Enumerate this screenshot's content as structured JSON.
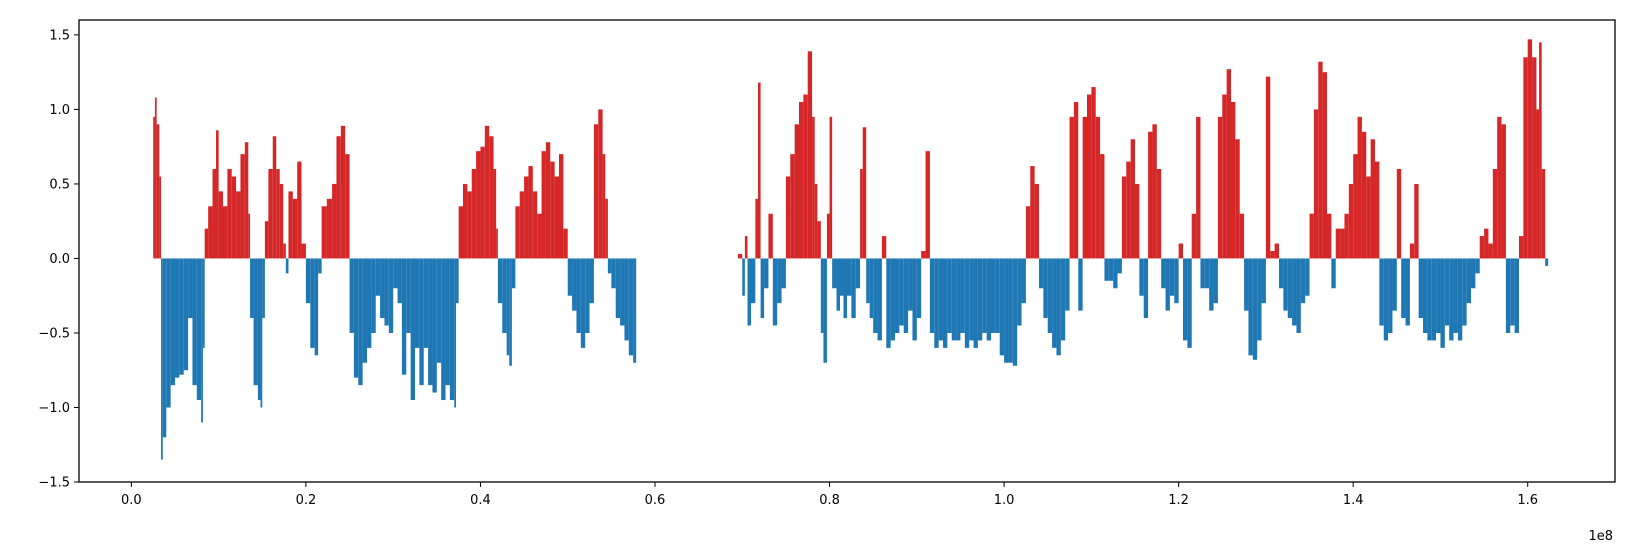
{
  "chart_data": {
    "type": "bar",
    "title": "",
    "xlabel": "",
    "ylabel": "",
    "x_offset_label": "1e8",
    "xlim": [
      -0.06,
      1.7
    ],
    "ylim": [
      -1.5,
      1.6
    ],
    "grid": false,
    "x_ticks": [
      {
        "value": 0.0,
        "label": "0.0"
      },
      {
        "value": 0.2,
        "label": "0.2"
      },
      {
        "value": 0.4,
        "label": "0.4"
      },
      {
        "value": 0.6,
        "label": "0.6"
      },
      {
        "value": 0.8,
        "label": "0.8"
      },
      {
        "value": 1.0,
        "label": "1.0"
      },
      {
        "value": 1.2,
        "label": "1.2"
      },
      {
        "value": 1.4,
        "label": "1.4"
      },
      {
        "value": 1.6,
        "label": "1.6"
      }
    ],
    "y_ticks": [
      {
        "value": 1.5,
        "label": "1.5"
      },
      {
        "value": 1.0,
        "label": "1.0"
      },
      {
        "value": 0.5,
        "label": "0.5"
      },
      {
        "value": 0.0,
        "label": "0.0"
      },
      {
        "value": -0.5,
        "label": "−0.5"
      },
      {
        "value": -1.0,
        "label": "−1.0"
      },
      {
        "value": -1.5,
        "label": "−1.5"
      }
    ],
    "colors": {
      "positive": "#d62728",
      "negative": "#1f77b4"
    },
    "profile": [
      [
        0.025,
        0.95
      ],
      [
        0.027,
        1.08
      ],
      [
        0.029,
        0.9
      ],
      [
        0.032,
        0.55
      ],
      [
        0.034,
        -1.35
      ],
      [
        0.036,
        -1.2
      ],
      [
        0.04,
        -1.0
      ],
      [
        0.045,
        -0.85
      ],
      [
        0.05,
        -0.8
      ],
      [
        0.055,
        -0.78
      ],
      [
        0.06,
        -0.75
      ],
      [
        0.065,
        -0.4
      ],
      [
        0.07,
        -0.85
      ],
      [
        0.075,
        -0.95
      ],
      [
        0.08,
        -1.1
      ],
      [
        0.082,
        -0.6
      ],
      [
        0.084,
        0.2
      ],
      [
        0.088,
        0.35
      ],
      [
        0.093,
        0.6
      ],
      [
        0.097,
        0.86
      ],
      [
        0.1,
        0.45
      ],
      [
        0.105,
        0.35
      ],
      [
        0.11,
        0.6
      ],
      [
        0.115,
        0.55
      ],
      [
        0.12,
        0.45
      ],
      [
        0.125,
        0.7
      ],
      [
        0.13,
        0.78
      ],
      [
        0.134,
        0.3
      ],
      [
        0.136,
        -0.4
      ],
      [
        0.14,
        -0.85
      ],
      [
        0.145,
        -0.95
      ],
      [
        0.148,
        -1.0
      ],
      [
        0.15,
        -0.4
      ],
      [
        0.153,
        0.25
      ],
      [
        0.157,
        0.6
      ],
      [
        0.162,
        0.82
      ],
      [
        0.166,
        0.6
      ],
      [
        0.17,
        0.5
      ],
      [
        0.174,
        0.1
      ],
      [
        0.177,
        -0.1
      ],
      [
        0.18,
        0.45
      ],
      [
        0.185,
        0.4
      ],
      [
        0.19,
        0.65
      ],
      [
        0.195,
        0.1
      ],
      [
        0.2,
        -0.3
      ],
      [
        0.205,
        -0.6
      ],
      [
        0.21,
        -0.65
      ],
      [
        0.214,
        -0.1
      ],
      [
        0.218,
        0.35
      ],
      [
        0.224,
        0.4
      ],
      [
        0.23,
        0.5
      ],
      [
        0.235,
        0.82
      ],
      [
        0.24,
        0.89
      ],
      [
        0.245,
        0.7
      ],
      [
        0.25,
        -0.5
      ],
      [
        0.255,
        -0.8
      ],
      [
        0.26,
        -0.85
      ],
      [
        0.265,
        -0.7
      ],
      [
        0.27,
        -0.6
      ],
      [
        0.275,
        -0.5
      ],
      [
        0.28,
        -0.25
      ],
      [
        0.285,
        -0.4
      ],
      [
        0.29,
        -0.45
      ],
      [
        0.295,
        -0.5
      ],
      [
        0.3,
        -0.2
      ],
      [
        0.305,
        -0.3
      ],
      [
        0.31,
        -0.78
      ],
      [
        0.315,
        -0.5
      ],
      [
        0.32,
        -0.95
      ],
      [
        0.325,
        -0.6
      ],
      [
        0.33,
        -0.85
      ],
      [
        0.335,
        -0.6
      ],
      [
        0.34,
        -0.85
      ],
      [
        0.345,
        -0.9
      ],
      [
        0.35,
        -0.7
      ],
      [
        0.355,
        -0.95
      ],
      [
        0.36,
        -0.85
      ],
      [
        0.365,
        -0.95
      ],
      [
        0.37,
        -1.0
      ],
      [
        0.372,
        -0.3
      ],
      [
        0.375,
        0.35
      ],
      [
        0.38,
        0.5
      ],
      [
        0.385,
        0.45
      ],
      [
        0.39,
        0.6
      ],
      [
        0.395,
        0.72
      ],
      [
        0.4,
        0.75
      ],
      [
        0.405,
        0.89
      ],
      [
        0.41,
        0.82
      ],
      [
        0.415,
        0.6
      ],
      [
        0.418,
        0.2
      ],
      [
        0.42,
        -0.3
      ],
      [
        0.425,
        -0.5
      ],
      [
        0.43,
        -0.65
      ],
      [
        0.433,
        -0.72
      ],
      [
        0.436,
        -0.2
      ],
      [
        0.44,
        0.35
      ],
      [
        0.445,
        0.45
      ],
      [
        0.45,
        0.55
      ],
      [
        0.455,
        0.62
      ],
      [
        0.46,
        0.45
      ],
      [
        0.465,
        0.3
      ],
      [
        0.47,
        0.72
      ],
      [
        0.475,
        0.78
      ],
      [
        0.48,
        0.65
      ],
      [
        0.485,
        0.55
      ],
      [
        0.49,
        0.7
      ],
      [
        0.495,
        0.2
      ],
      [
        0.5,
        -0.25
      ],
      [
        0.505,
        -0.35
      ],
      [
        0.51,
        -0.5
      ],
      [
        0.515,
        -0.6
      ],
      [
        0.52,
        -0.5
      ],
      [
        0.525,
        -0.3
      ],
      [
        0.53,
        0.9
      ],
      [
        0.535,
        1.0
      ],
      [
        0.54,
        0.7
      ],
      [
        0.543,
        0.4
      ],
      [
        0.546,
        -0.1
      ],
      [
        0.55,
        -0.2
      ],
      [
        0.555,
        -0.4
      ],
      [
        0.56,
        -0.45
      ],
      [
        0.565,
        -0.55
      ],
      [
        0.57,
        -0.65
      ],
      [
        0.575,
        -0.7
      ],
      [
        0.695,
        0.03
      ],
      [
        0.7,
        -0.25
      ],
      [
        0.703,
        0.15
      ],
      [
        0.706,
        -0.45
      ],
      [
        0.71,
        -0.3
      ],
      [
        0.715,
        0.4
      ],
      [
        0.718,
        1.18
      ],
      [
        0.721,
        -0.4
      ],
      [
        0.725,
        -0.2
      ],
      [
        0.73,
        0.3
      ],
      [
        0.735,
        -0.45
      ],
      [
        0.74,
        -0.3
      ],
      [
        0.745,
        -0.2
      ],
      [
        0.75,
        0.55
      ],
      [
        0.755,
        0.7
      ],
      [
        0.76,
        0.9
      ],
      [
        0.765,
        1.05
      ],
      [
        0.77,
        1.1
      ],
      [
        0.775,
        1.39
      ],
      [
        0.78,
        0.95
      ],
      [
        0.783,
        0.5
      ],
      [
        0.786,
        0.25
      ],
      [
        0.79,
        -0.5
      ],
      [
        0.793,
        -0.7
      ],
      [
        0.797,
        0.3
      ],
      [
        0.8,
        0.95
      ],
      [
        0.803,
        -0.2
      ],
      [
        0.808,
        -0.35
      ],
      [
        0.812,
        -0.25
      ],
      [
        0.816,
        -0.4
      ],
      [
        0.82,
        -0.25
      ],
      [
        0.825,
        -0.4
      ],
      [
        0.83,
        -0.2
      ],
      [
        0.835,
        0.6
      ],
      [
        0.838,
        0.88
      ],
      [
        0.842,
        -0.3
      ],
      [
        0.846,
        -0.4
      ],
      [
        0.85,
        -0.5
      ],
      [
        0.855,
        -0.55
      ],
      [
        0.86,
        0.15
      ],
      [
        0.865,
        -0.6
      ],
      [
        0.87,
        -0.55
      ],
      [
        0.875,
        -0.5
      ],
      [
        0.88,
        -0.45
      ],
      [
        0.885,
        -0.5
      ],
      [
        0.89,
        -0.35
      ],
      [
        0.895,
        -0.55
      ],
      [
        0.9,
        -0.4
      ],
      [
        0.905,
        0.05
      ],
      [
        0.91,
        0.72
      ],
      [
        0.915,
        -0.5
      ],
      [
        0.92,
        -0.6
      ],
      [
        0.925,
        -0.55
      ],
      [
        0.93,
        -0.6
      ],
      [
        0.935,
        -0.5
      ],
      [
        0.94,
        -0.55
      ],
      [
        0.945,
        -0.55
      ],
      [
        0.95,
        -0.5
      ],
      [
        0.955,
        -0.6
      ],
      [
        0.96,
        -0.55
      ],
      [
        0.965,
        -0.6
      ],
      [
        0.97,
        -0.55
      ],
      [
        0.975,
        -0.5
      ],
      [
        0.98,
        -0.55
      ],
      [
        0.985,
        -0.5
      ],
      [
        0.99,
        -0.5
      ],
      [
        0.995,
        -0.65
      ],
      [
        1.0,
        -0.7
      ],
      [
        1.005,
        -0.7
      ],
      [
        1.01,
        -0.72
      ],
      [
        1.015,
        -0.45
      ],
      [
        1.02,
        -0.3
      ],
      [
        1.025,
        0.35
      ],
      [
        1.03,
        0.62
      ],
      [
        1.035,
        0.5
      ],
      [
        1.04,
        -0.2
      ],
      [
        1.045,
        -0.4
      ],
      [
        1.05,
        -0.5
      ],
      [
        1.055,
        -0.6
      ],
      [
        1.06,
        -0.65
      ],
      [
        1.065,
        -0.55
      ],
      [
        1.07,
        -0.35
      ],
      [
        1.075,
        0.95
      ],
      [
        1.08,
        1.05
      ],
      [
        1.085,
        -0.35
      ],
      [
        1.09,
        0.95
      ],
      [
        1.095,
        1.1
      ],
      [
        1.1,
        1.15
      ],
      [
        1.105,
        0.95
      ],
      [
        1.11,
        0.7
      ],
      [
        1.115,
        -0.15
      ],
      [
        1.12,
        -0.15
      ],
      [
        1.125,
        -0.2
      ],
      [
        1.13,
        -0.1
      ],
      [
        1.135,
        0.55
      ],
      [
        1.14,
        0.65
      ],
      [
        1.145,
        0.8
      ],
      [
        1.15,
        0.5
      ],
      [
        1.155,
        -0.25
      ],
      [
        1.16,
        -0.4
      ],
      [
        1.165,
        0.85
      ],
      [
        1.17,
        0.9
      ],
      [
        1.175,
        0.6
      ],
      [
        1.18,
        -0.2
      ],
      [
        1.185,
        -0.35
      ],
      [
        1.19,
        -0.25
      ],
      [
        1.195,
        -0.3
      ],
      [
        1.2,
        0.1
      ],
      [
        1.205,
        -0.55
      ],
      [
        1.21,
        -0.6
      ],
      [
        1.215,
        0.3
      ],
      [
        1.22,
        0.95
      ],
      [
        1.225,
        -0.2
      ],
      [
        1.23,
        -0.2
      ],
      [
        1.235,
        -0.35
      ],
      [
        1.24,
        -0.3
      ],
      [
        1.245,
        0.95
      ],
      [
        1.25,
        1.1
      ],
      [
        1.255,
        1.27
      ],
      [
        1.26,
        1.05
      ],
      [
        1.265,
        0.8
      ],
      [
        1.27,
        0.3
      ],
      [
        1.275,
        -0.35
      ],
      [
        1.28,
        -0.65
      ],
      [
        1.285,
        -0.68
      ],
      [
        1.29,
        -0.55
      ],
      [
        1.295,
        -0.3
      ],
      [
        1.3,
        1.22
      ],
      [
        1.305,
        0.05
      ],
      [
        1.31,
        0.1
      ],
      [
        1.315,
        -0.2
      ],
      [
        1.32,
        -0.35
      ],
      [
        1.325,
        -0.4
      ],
      [
        1.33,
        -0.45
      ],
      [
        1.335,
        -0.5
      ],
      [
        1.34,
        -0.3
      ],
      [
        1.345,
        -0.25
      ],
      [
        1.35,
        0.3
      ],
      [
        1.355,
        1.0
      ],
      [
        1.36,
        1.32
      ],
      [
        1.365,
        1.25
      ],
      [
        1.37,
        0.3
      ],
      [
        1.375,
        -0.2
      ],
      [
        1.38,
        0.2
      ],
      [
        1.385,
        0.2
      ],
      [
        1.39,
        0.3
      ],
      [
        1.395,
        0.5
      ],
      [
        1.4,
        0.7
      ],
      [
        1.405,
        0.95
      ],
      [
        1.41,
        0.85
      ],
      [
        1.415,
        0.55
      ],
      [
        1.42,
        0.8
      ],
      [
        1.425,
        0.65
      ],
      [
        1.43,
        -0.45
      ],
      [
        1.435,
        -0.55
      ],
      [
        1.44,
        -0.5
      ],
      [
        1.445,
        -0.35
      ],
      [
        1.45,
        0.6
      ],
      [
        1.455,
        -0.4
      ],
      [
        1.46,
        -0.45
      ],
      [
        1.465,
        0.1
      ],
      [
        1.47,
        0.5
      ],
      [
        1.475,
        -0.4
      ],
      [
        1.48,
        -0.5
      ],
      [
        1.485,
        -0.55
      ],
      [
        1.49,
        -0.55
      ],
      [
        1.495,
        -0.5
      ],
      [
        1.5,
        -0.6
      ],
      [
        1.505,
        -0.45
      ],
      [
        1.51,
        -0.55
      ],
      [
        1.515,
        -0.5
      ],
      [
        1.52,
        -0.55
      ],
      [
        1.525,
        -0.45
      ],
      [
        1.53,
        -0.3
      ],
      [
        1.535,
        -0.2
      ],
      [
        1.54,
        -0.1
      ],
      [
        1.545,
        0.15
      ],
      [
        1.55,
        0.2
      ],
      [
        1.555,
        0.1
      ],
      [
        1.56,
        0.6
      ],
      [
        1.565,
        0.95
      ],
      [
        1.57,
        0.9
      ],
      [
        1.575,
        -0.5
      ],
      [
        1.58,
        -0.45
      ],
      [
        1.585,
        -0.5
      ],
      [
        1.59,
        0.15
      ],
      [
        1.595,
        1.35
      ],
      [
        1.6,
        1.47
      ],
      [
        1.605,
        1.35
      ],
      [
        1.61,
        1.0
      ],
      [
        1.613,
        1.45
      ],
      [
        1.616,
        0.6
      ],
      [
        1.62,
        -0.05
      ]
    ]
  }
}
